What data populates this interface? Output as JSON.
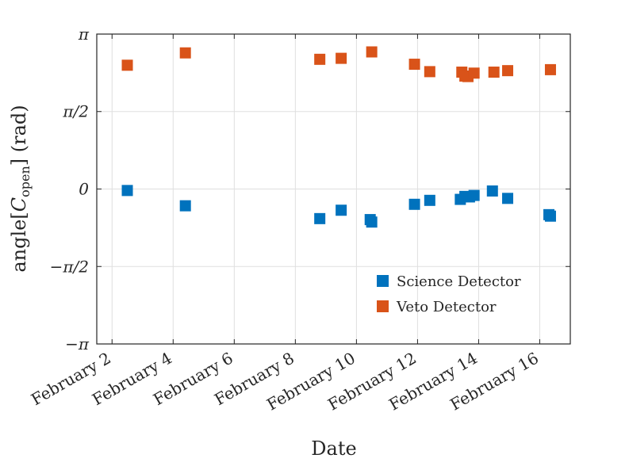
{
  "chart_data": {
    "type": "scatter",
    "xlabel": "Date",
    "ylabel_prefix": "angle[",
    "ylabel_var": "C",
    "ylabel_sub": "open",
    "ylabel_suffix": "] (rad)",
    "xlim": [
      1.5,
      17.0
    ],
    "ylim": [
      -3.14159,
      3.14159
    ],
    "x_ticks": [
      {
        "value": 2,
        "label": "February 2"
      },
      {
        "value": 4,
        "label": "February 4"
      },
      {
        "value": 6,
        "label": "February 6"
      },
      {
        "value": 8,
        "label": "February 8"
      },
      {
        "value": 10,
        "label": "February 10"
      },
      {
        "value": 12,
        "label": "February 12"
      },
      {
        "value": 14,
        "label": "February 14"
      },
      {
        "value": 16,
        "label": "February 16"
      }
    ],
    "y_ticks": [
      {
        "value": 3.14159,
        "label": "π"
      },
      {
        "value": 1.5708,
        "label": "π/2"
      },
      {
        "value": 0,
        "label": "0"
      },
      {
        "value": -1.5708,
        "label": "−π/2"
      },
      {
        "value": -3.14159,
        "label": "−π"
      }
    ],
    "grid": true,
    "legend_position": "bottom-right",
    "series": [
      {
        "name": "Science Detector",
        "color": "#0072bd",
        "points": [
          {
            "x": 2.5,
            "y": -0.03
          },
          {
            "x": 4.4,
            "y": -0.34
          },
          {
            "x": 8.8,
            "y": -0.6
          },
          {
            "x": 9.5,
            "y": -0.43
          },
          {
            "x": 10.45,
            "y": -0.62
          },
          {
            "x": 10.5,
            "y": -0.67
          },
          {
            "x": 11.9,
            "y": -0.31
          },
          {
            "x": 12.4,
            "y": -0.23
          },
          {
            "x": 13.4,
            "y": -0.21
          },
          {
            "x": 13.55,
            "y": -0.15
          },
          {
            "x": 13.7,
            "y": -0.16
          },
          {
            "x": 13.85,
            "y": -0.13
          },
          {
            "x": 14.45,
            "y": -0.04
          },
          {
            "x": 14.95,
            "y": -0.19
          },
          {
            "x": 16.3,
            "y": -0.52
          },
          {
            "x": 16.35,
            "y": -0.55
          }
        ]
      },
      {
        "name": "Veto Detector",
        "color": "#d95319",
        "points": [
          {
            "x": 2.5,
            "y": 2.51
          },
          {
            "x": 4.4,
            "y": 2.76
          },
          {
            "x": 8.8,
            "y": 2.63
          },
          {
            "x": 9.5,
            "y": 2.65
          },
          {
            "x": 10.5,
            "y": 2.78
          },
          {
            "x": 11.9,
            "y": 2.53
          },
          {
            "x": 12.4,
            "y": 2.38
          },
          {
            "x": 13.45,
            "y": 2.37
          },
          {
            "x": 13.55,
            "y": 2.29
          },
          {
            "x": 13.65,
            "y": 2.28
          },
          {
            "x": 13.85,
            "y": 2.35
          },
          {
            "x": 14.5,
            "y": 2.37
          },
          {
            "x": 14.95,
            "y": 2.4
          },
          {
            "x": 16.35,
            "y": 2.42
          }
        ]
      }
    ]
  }
}
